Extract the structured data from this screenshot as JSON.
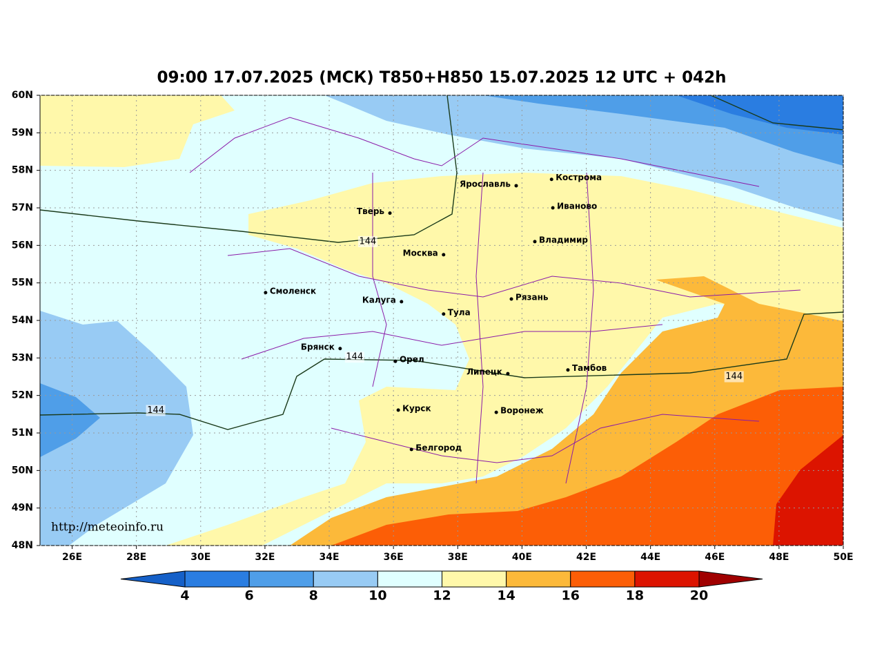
{
  "title": "09:00 17.07.2025 (МСК) T850+H850 15.07.2025 12 UTC + 042h",
  "map": {
    "lonlim": [
      25,
      50
    ],
    "latlim": [
      48,
      60
    ],
    "lon_ticks": [
      {
        "value": 26,
        "label": "26E"
      },
      {
        "value": 28,
        "label": "28E"
      },
      {
        "value": 30,
        "label": "30E"
      },
      {
        "value": 32,
        "label": "32E"
      },
      {
        "value": 34,
        "label": "34E"
      },
      {
        "value": 36,
        "label": "36E"
      },
      {
        "value": 38,
        "label": "38E"
      },
      {
        "value": 40,
        "label": "40E"
      },
      {
        "value": 42,
        "label": "42E"
      },
      {
        "value": 44,
        "label": "44E"
      },
      {
        "value": 46,
        "label": "46E"
      },
      {
        "value": 48,
        "label": "48E"
      },
      {
        "value": 50,
        "label": "50E"
      }
    ],
    "lat_ticks": [
      {
        "value": 48,
        "label": "48N"
      },
      {
        "value": 49,
        "label": "49N"
      },
      {
        "value": 50,
        "label": "50N"
      },
      {
        "value": 51,
        "label": "51N"
      },
      {
        "value": 52,
        "label": "52N"
      },
      {
        "value": 53,
        "label": "53N"
      },
      {
        "value": 54,
        "label": "54N"
      },
      {
        "value": 55,
        "label": "55N"
      },
      {
        "value": 56,
        "label": "56N"
      },
      {
        "value": 57,
        "label": "57N"
      },
      {
        "value": 58,
        "label": "58N"
      },
      {
        "value": 59,
        "label": "59N"
      },
      {
        "value": 60,
        "label": "60N"
      }
    ],
    "grid": true,
    "cities": [
      {
        "name": "Ярославль",
        "lon": 39.82,
        "lat": 57.59,
        "anchor": "left"
      },
      {
        "name": "Кострома",
        "lon": 40.92,
        "lat": 57.76,
        "anchor": "right"
      },
      {
        "name": "Иваново",
        "lon": 40.96,
        "lat": 57.0,
        "anchor": "right"
      },
      {
        "name": "Тверь",
        "lon": 35.89,
        "lat": 56.86,
        "anchor": "left"
      },
      {
        "name": "Владимир",
        "lon": 40.4,
        "lat": 56.1,
        "anchor": "right"
      },
      {
        "name": "Москва",
        "lon": 37.56,
        "lat": 55.75,
        "anchor": "left"
      },
      {
        "name": "Смоленск",
        "lon": 32.02,
        "lat": 54.74,
        "anchor": "right"
      },
      {
        "name": "Калуга",
        "lon": 36.25,
        "lat": 54.5,
        "anchor": "left"
      },
      {
        "name": "Рязань",
        "lon": 39.67,
        "lat": 54.57,
        "anchor": "right"
      },
      {
        "name": "Тула",
        "lon": 37.56,
        "lat": 54.17,
        "anchor": "right"
      },
      {
        "name": "Брянск",
        "lon": 34.34,
        "lat": 53.25,
        "anchor": "left"
      },
      {
        "name": "Орел",
        "lon": 36.06,
        "lat": 52.91,
        "anchor": "right"
      },
      {
        "name": "Липецк",
        "lon": 39.56,
        "lat": 52.58,
        "anchor": "left"
      },
      {
        "name": "Тамбов",
        "lon": 41.43,
        "lat": 52.68,
        "anchor": "right"
      },
      {
        "name": "Курск",
        "lon": 36.15,
        "lat": 51.61,
        "anchor": "right"
      },
      {
        "name": "Воронеж",
        "lon": 39.2,
        "lat": 51.55,
        "anchor": "right"
      },
      {
        "name": "Белгород",
        "lon": 36.56,
        "lat": 50.56,
        "anchor": "right"
      }
    ],
    "contour": {
      "level": 144,
      "labels": [
        {
          "lon": 35.2,
          "lat": 56.1
        },
        {
          "lon": 34.79,
          "lat": 53.02
        },
        {
          "lon": 46.6,
          "lat": 52.5
        },
        {
          "lon": 28.6,
          "lat": 51.6
        }
      ]
    },
    "source": "http://meteoinfo.ru"
  },
  "colorbar": {
    "ticks": [
      4,
      6,
      8,
      10,
      12,
      14,
      16,
      18,
      20
    ],
    "colors": [
      "#2a7de1",
      "#4f9ee8",
      "#98cbf4",
      "#e0ffff",
      "#fff8aa",
      "#fcb93a",
      "#fc5e06",
      "#dc1400"
    ],
    "under": "#1560c8",
    "over": "#a00000"
  }
}
